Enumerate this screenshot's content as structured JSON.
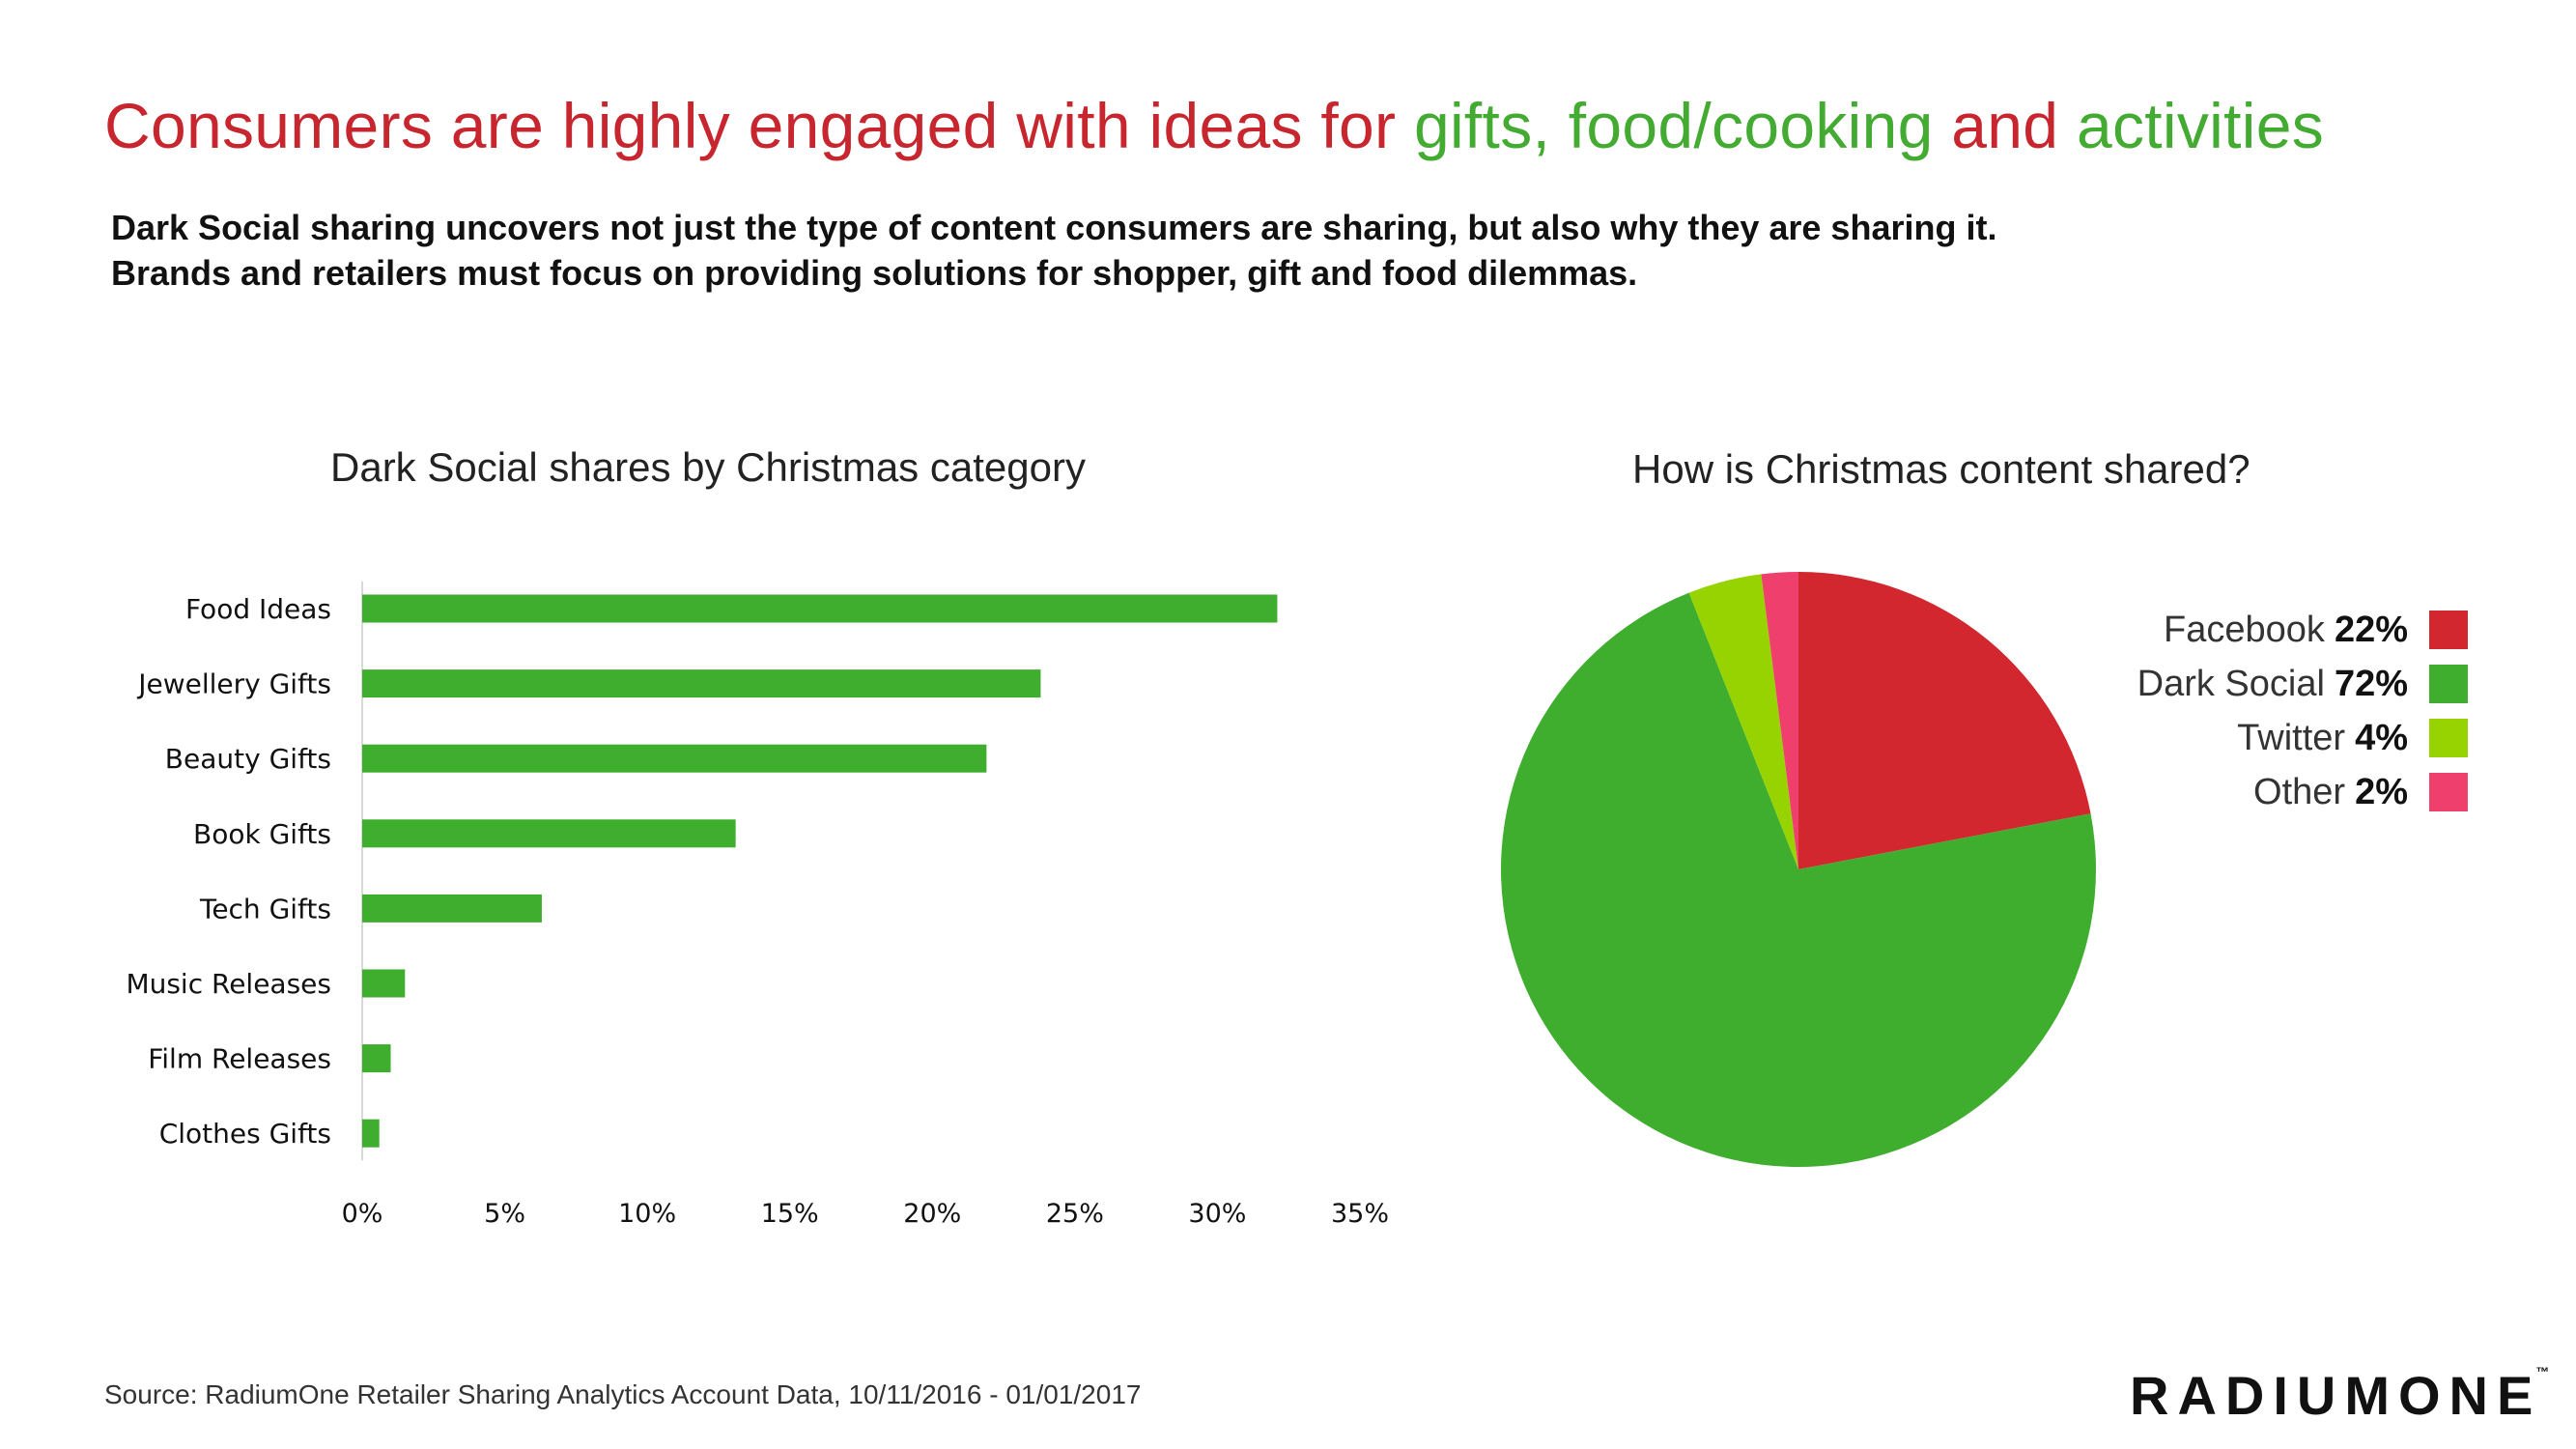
{
  "header": {
    "title_part1": "Consumers are highly engaged with ideas for ",
    "title_part2": "gifts, food/cooking",
    "title_part3": " and ",
    "title_part4": "activities",
    "subtitle_line1": "Dark Social sharing uncovers not just the type of content consumers are sharing, but also why they are sharing it.",
    "subtitle_line2": "Brands and retailers must focus on providing solutions for shopper, gift and food dilemmas."
  },
  "colors": {
    "title_red": "#c8262f",
    "title_green": "#43aa32",
    "bar": "#3fae2e"
  },
  "chart_data": [
    {
      "type": "bar",
      "orientation": "horizontal",
      "title": "Dark Social shares by Christmas category",
      "categories": [
        "Food Ideas",
        "Jewellery Gifts",
        "Beauty Gifts",
        "Book Gifts",
        "Tech Gifts",
        "Music Releases",
        "Film Releases",
        "Clothes Gifts"
      ],
      "values": [
        32.1,
        23.8,
        21.9,
        13.1,
        6.3,
        1.5,
        1.0,
        0.6
      ],
      "value_unit": "%",
      "xlim": [
        0,
        35
      ],
      "xticks": [
        "0%",
        "5%",
        "10%",
        "15%",
        "20%",
        "25%",
        "30%",
        "35%"
      ],
      "grid": false,
      "color": "#3fae2e"
    },
    {
      "type": "pie",
      "title": "How is Christmas content shared?",
      "legend_position": "right",
      "slices": [
        {
          "label": "Facebook",
          "pct_label": "22%",
          "value": 22,
          "color": "#d3272f"
        },
        {
          "label": "Dark Social",
          "pct_label": "72%",
          "value": 72,
          "color": "#3fae2e"
        },
        {
          "label": "Twitter",
          "pct_label": "4%",
          "value": 4,
          "color": "#96d300"
        },
        {
          "label": "Other",
          "pct_label": "2%",
          "value": 2,
          "color": "#ef3f6c"
        }
      ]
    }
  ],
  "footer": {
    "source": "Source: RadiumOne Retailer Sharing Analytics Account Data, 10/11/2016 - 01/01/2017",
    "logo_text": "RADIUMONE",
    "logo_mark": "™"
  }
}
